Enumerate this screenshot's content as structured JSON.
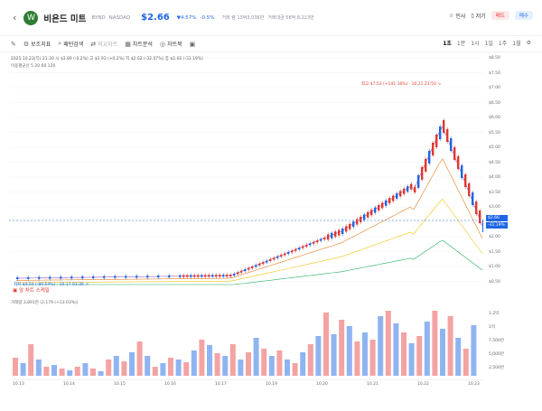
{
  "header": {
    "back": "‹",
    "logo_letter": "W",
    "name": "비욘드 미트",
    "ticker": "BYND",
    "exchange": "NASDAQ",
    "price": "$2.66",
    "change_amt": "▼4.57%",
    "change_pct": "-0.5%",
    "volume_meta": "거래 량 13억3,036만",
    "amount_meta": "거래대금 58억 8,213만",
    "actions": {
      "insight": "인사",
      "save": "저기",
      "sell": "매도",
      "buy": "매수"
    }
  },
  "toolbar": {
    "items": [
      "보조지표",
      "패턴검색",
      "비교차트",
      "차트분석",
      "차트북"
    ],
    "timeframes": [
      "1초",
      "1분",
      "1시",
      "1일",
      "1주",
      "1월"
    ],
    "selected": "1초"
  },
  "chart": {
    "info_line": "2025.10.23(목) 21:30  시 $3.89 (-0.2%)  고 $3.93 (+0.2%)  저 $2.62 (-32.07%)  종 $2.66 (-31.19%)",
    "ma_line": "이동평균선  5  20  60  120",
    "peak_note": "최고 $7.53 (+141.16%) · 10.21 23:50 ↘",
    "low_note": "최저 $0.50 (-80.54%) · 10.17 01:36 ↗",
    "current_tag": "$2.66",
    "current_tag2": "-31.19%",
    "tip_label": "앞 차트 스케일",
    "price_ticks": [
      "$8.50",
      "$7.50",
      "$7.00",
      "$6.50",
      "$6.00",
      "$5.50",
      "$5.00",
      "$4.50",
      "$4.00",
      "$3.50",
      "$3.00",
      "$2.50",
      "$2.00",
      "$1.50",
      "$1.00",
      "$0.50"
    ],
    "vol_label": "거래량  3,891만 (2,179 (+13.03%))",
    "vol_ticks": [
      "1.2억",
      "1억",
      "7,500만",
      "5,000만",
      "2,500만"
    ],
    "date_ticks": [
      "10.13",
      "10.14",
      "10.15",
      "10.16",
      "10.17",
      "10.19",
      "10.20",
      "10.21",
      "10.22",
      "10.23"
    ]
  },
  "colors": {
    "up": "#e0392f",
    "down": "#1e66e6",
    "ma5": "#9b59b6",
    "ma20": "#e67e22",
    "ma60": "#f1c40f",
    "ma120": "#27ae60"
  }
}
